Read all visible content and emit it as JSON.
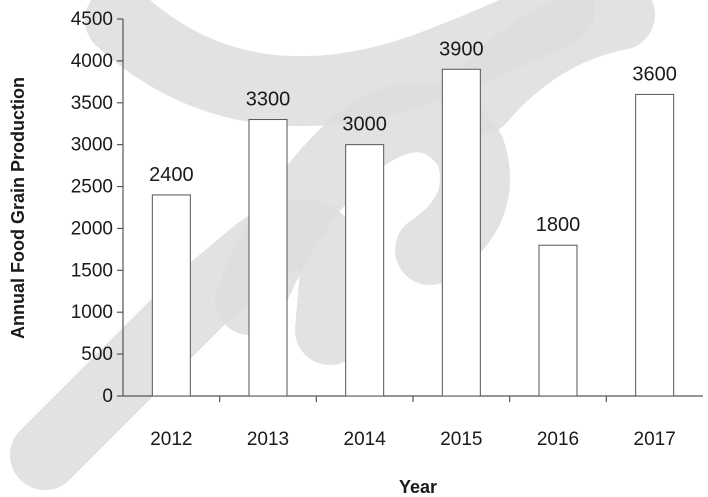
{
  "chart_data": {
    "type": "bar",
    "title": "",
    "xlabel": "Year",
    "ylabel": "Annual Food Grain Production",
    "categories": [
      "2012",
      "2013",
      "2014",
      "2015",
      "2016",
      "2017"
    ],
    "values": [
      2400,
      3300,
      3000,
      3900,
      1800,
      3600
    ],
    "data_labels": [
      "2400",
      "3300",
      "3000",
      "3900",
      "1800",
      "3600"
    ],
    "ylim": [
      0,
      4500
    ],
    "yticks": [
      0,
      500,
      1000,
      1500,
      2000,
      2500,
      3000,
      3500,
      4000,
      4500
    ],
    "ytick_labels": [
      "0",
      "500",
      "1000",
      "1500",
      "2000",
      "2500",
      "3000",
      "3500",
      "4000",
      "4500"
    ],
    "grid": false,
    "legend": "none",
    "colors": {
      "bar_fill": "#ffffff",
      "bar_stroke": "#555555",
      "axis": "#555555",
      "watermark": "#dddddd"
    }
  }
}
